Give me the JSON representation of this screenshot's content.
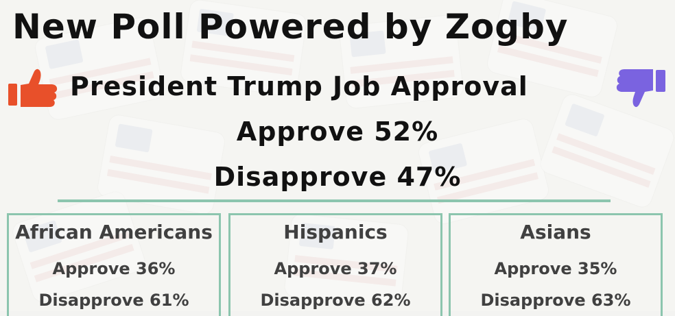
{
  "header": {
    "title": "New Poll Powered by Zogby",
    "subtitle": "President Trump Job Approval",
    "approve": "Approve 52%",
    "disapprove": "Disapprove 47%"
  },
  "icons": {
    "thumb_up": "thumbs-up-icon",
    "thumb_down": "thumbs-down-icon",
    "thumb_up_color": "#e8502a",
    "thumb_down_color": "#7a63e0"
  },
  "colors": {
    "accent": "#8cc5ae",
    "text_primary": "#111111",
    "text_secondary": "#404040"
  },
  "groups": [
    {
      "name": "African Americans",
      "approve": "Approve 36%",
      "disapprove": "Disapprove 61%"
    },
    {
      "name": "Hispanics",
      "approve": "Approve 37%",
      "disapprove": "Disapprove 62%"
    },
    {
      "name": "Asians",
      "approve": "Approve 35%",
      "disapprove": "Disapprove 63%"
    }
  ]
}
